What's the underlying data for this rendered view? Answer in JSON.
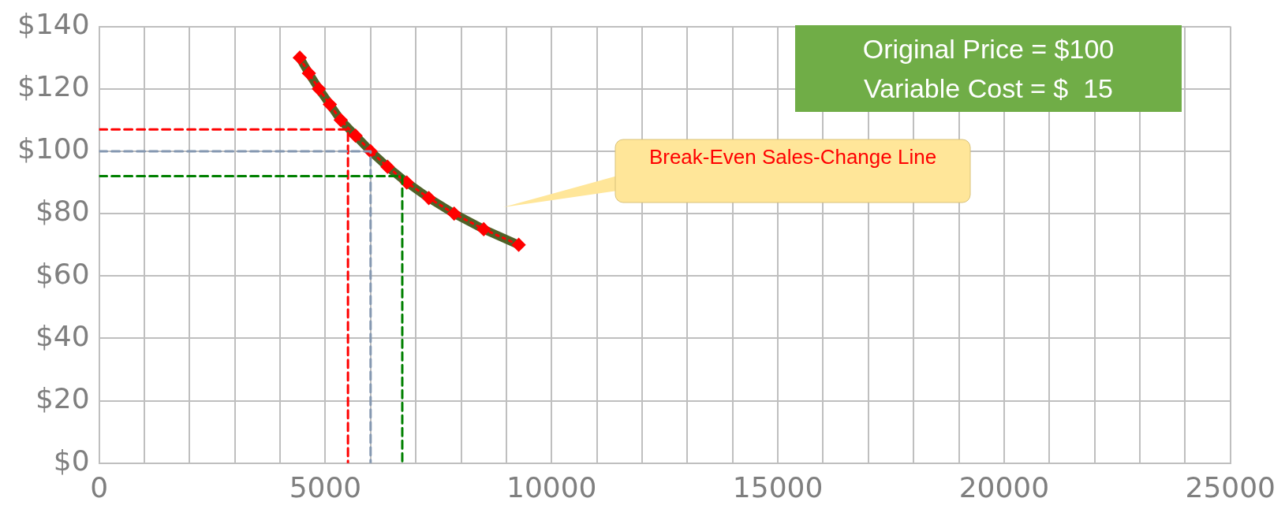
{
  "chart_data": {
    "type": "line",
    "x": [
      4435,
      4636,
      4857,
      5100,
      5340,
      5667,
      6000,
      6375,
      6800,
      7286,
      7846,
      8500,
      9273
    ],
    "series": [
      {
        "color": "#4f6228",
        "marker": "none",
        "line_style": "solid",
        "values": [
          130,
          125,
          120,
          115,
          110,
          105,
          100,
          95,
          90,
          85,
          80,
          75,
          70
        ]
      },
      {
        "color": "#ff0000",
        "marker": "diamond",
        "line_style": "dotted",
        "values": [
          130,
          125,
          120,
          115,
          110,
          105,
          100,
          95,
          90,
          85,
          80,
          75,
          70
        ]
      },
      {
        "color": "#ff0000",
        "marker": "none",
        "line_style": "dashed",
        "x": [
          0,
          5500,
          5500
        ],
        "values": [
          107,
          107,
          0
        ]
      },
      {
        "color": "#8497b0",
        "marker": "none",
        "line_style": "dashed",
        "x": [
          0,
          6000,
          6000
        ],
        "values": [
          100,
          100,
          0
        ]
      },
      {
        "color": "#008000",
        "marker": "none",
        "line_style": "dashed",
        "x": [
          0,
          6700,
          6700
        ],
        "values": [
          92,
          92,
          0
        ]
      }
    ],
    "xlim": [
      0,
      25000
    ],
    "xticks": [
      0,
      {
        "value": 1000,
        "label": null
      },
      {
        "value": 2000,
        "label": null
      },
      {
        "value": 3000,
        "label": null
      },
      {
        "value": 4000,
        "label": null
      },
      5000,
      {
        "value": 6000,
        "label": null
      },
      {
        "value": 7000,
        "label": null
      },
      {
        "value": 8000,
        "label": null
      },
      {
        "value": 9000,
        "label": null
      },
      10000,
      {
        "value": 11000,
        "label": null
      },
      {
        "value": 12000,
        "label": null
      },
      {
        "value": 13000,
        "label": null
      },
      {
        "value": 14000,
        "label": null
      },
      15000,
      {
        "value": 16000,
        "label": null
      },
      {
        "value": 17000,
        "label": null
      },
      {
        "value": 18000,
        "label": null
      },
      {
        "value": 19000,
        "label": null
      },
      20000,
      {
        "value": 21000,
        "label": null
      },
      {
        "value": 22000,
        "label": null
      },
      {
        "value": 23000,
        "label": null
      },
      {
        "value": 24000,
        "label": null
      },
      25000
    ],
    "ylim": [
      0,
      140
    ],
    "yticks": [
      {
        "value": 0,
        "label": "$0"
      },
      {
        "value": 20,
        "label": "$20"
      },
      {
        "value": 40,
        "label": "$40"
      },
      {
        "value": 60,
        "label": "$60"
      },
      {
        "value": 80,
        "label": "$80"
      },
      {
        "value": 100,
        "label": "$100"
      },
      {
        "value": 120,
        "label": "$120"
      },
      {
        "value": 140,
        "label": "$140"
      }
    ],
    "grid": true,
    "legend": false,
    "annotations": [
      "Original Price = $100\nVariable Cost = $  15",
      "Break-Even Sales-Change Line"
    ]
  }
}
